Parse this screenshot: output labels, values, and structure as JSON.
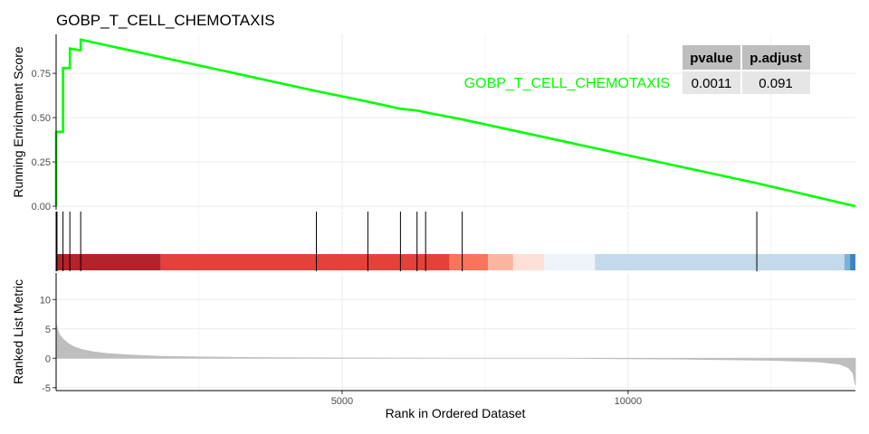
{
  "chart_data": {
    "type": "line",
    "title": "GOBP_T_CELL_CHEMOTAXIS",
    "x_total": 13974,
    "top_panel": {
      "ylabel": "Running Enrichment Score",
      "ylim": [
        -0.02,
        0.97
      ],
      "yticks": [
        0.0,
        0.25,
        0.5,
        0.75
      ],
      "ytick_labels": [
        "0.00",
        "0.25",
        "0.50",
        "0.75"
      ],
      "series": [
        {
          "name": "GOBP_T_CELL_CHEMOTAXIS",
          "color": "#00FF00",
          "x": [
            0,
            1,
            15,
            15,
            120,
            120,
            240,
            240,
            430,
            430,
            4550,
            4550,
            5450,
            5450,
            6020,
            6020,
            6310,
            6310,
            6460,
            6460,
            7100,
            7100,
            12250,
            12250,
            13974
          ],
          "y": [
            0.0,
            0.42,
            0.42,
            0.42,
            0.42,
            0.78,
            0.78,
            0.89,
            0.88,
            0.94,
            0.65,
            0.65,
            0.59,
            0.59,
            0.55,
            0.55,
            0.54,
            0.54,
            0.53,
            0.53,
            0.49,
            0.49,
            0.13,
            0.13,
            0.0
          ]
        }
      ]
    },
    "hits": [
      15,
      120,
      240,
      430,
      4550,
      5450,
      6020,
      6310,
      6460,
      7100,
      12250
    ],
    "color_band": [
      {
        "from": 0,
        "to": 1830,
        "color": "#B2232A"
      },
      {
        "from": 1830,
        "to": 6880,
        "color": "#E3423A"
      },
      {
        "from": 6880,
        "to": 7550,
        "color": "#F7765B"
      },
      {
        "from": 7550,
        "to": 7990,
        "color": "#FBB59F"
      },
      {
        "from": 7990,
        "to": 8530,
        "color": "#FCE0D5"
      },
      {
        "from": 8530,
        "to": 9420,
        "color": "#EEF4FA"
      },
      {
        "from": 9420,
        "to": 13780,
        "color": "#C3DAEA"
      },
      {
        "from": 13780,
        "to": 13880,
        "color": "#7CB2D8"
      },
      {
        "from": 13880,
        "to": 13974,
        "color": "#3B84BE"
      }
    ],
    "bottom_panel": {
      "ylabel": "Ranked List Metric",
      "ylim": [
        -5.5,
        14.5
      ],
      "yticks": [
        -5,
        0,
        5,
        10
      ],
      "ytick_labels": [
        "-5",
        "0",
        "5",
        "10"
      ],
      "metric_x": [
        0,
        20,
        60,
        120,
        200,
        300,
        450,
        650,
        900,
        1300,
        1800,
        2500,
        3500,
        5000,
        7000,
        8800,
        9400,
        11000,
        12500,
        13300,
        13700,
        13850,
        13930,
        13974
      ],
      "metric_y": [
        6.0,
        5.0,
        4.0,
        3.3,
        2.6,
        2.0,
        1.5,
        1.1,
        0.8,
        0.55,
        0.35,
        0.22,
        0.12,
        0.05,
        0.0,
        0.0,
        -0.05,
        -0.15,
        -0.35,
        -0.6,
        -1.0,
        -1.6,
        -2.5,
        -4.6
      ],
      "fill_color": "#BEBEBE"
    },
    "xlabel": "Rank in Ordered Dataset",
    "xticks": [
      5000,
      10000
    ],
    "xtick_labels": [
      "5000",
      "10000"
    ],
    "stats_table": {
      "headers": [
        "pvalue",
        "p.adjust"
      ],
      "row": [
        "0.0011",
        "0.091"
      ]
    },
    "legend": {
      "label": "GOBP_T_CELL_CHEMOTAXIS",
      "placement": "top-right"
    },
    "grid": true
  }
}
